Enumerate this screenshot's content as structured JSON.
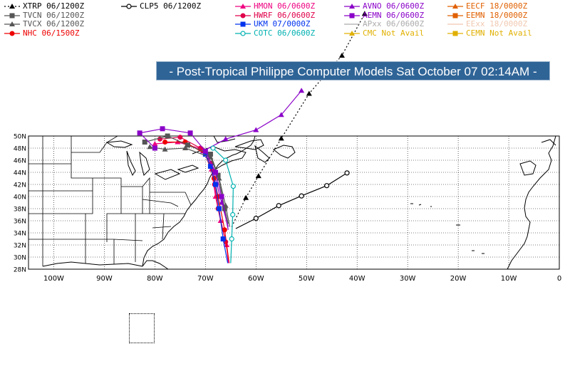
{
  "title": "- Post-Tropical Philippe Computer Models Sat October 07 02:14AM -",
  "legend": [
    {
      "id": "xtrp",
      "label": "XTRP  06/1200Z",
      "color": "#000000",
      "marker": "triangle",
      "dash": "2,3"
    },
    {
      "id": "tvcn",
      "label": "TVCN  06/1200Z",
      "color": "#555555",
      "marker": "square",
      "dash": ""
    },
    {
      "id": "tvcx",
      "label": "TVCX  06/1200Z",
      "color": "#555555",
      "marker": "triangle",
      "dash": ""
    },
    {
      "id": "nhc",
      "label": "NHC  06/1500Z",
      "color": "#ee0000",
      "marker": "circle",
      "dash": ""
    },
    {
      "id": "clp5",
      "label": "CLP5  06/1200Z",
      "color": "#000000",
      "marker": "open-circle",
      "dash": ""
    },
    {
      "id": "hmon",
      "label": "HMON  06/0600Z",
      "color": "#ee0080",
      "marker": "triangle",
      "dash": ""
    },
    {
      "id": "hwrf",
      "label": "HWRF  06/0600Z",
      "color": "#e0004a",
      "marker": "circle",
      "dash": ""
    },
    {
      "id": "ukm",
      "label": "UKM   07/0000Z",
      "color": "#0033ee",
      "marker": "square",
      "dash": ""
    },
    {
      "id": "cotc",
      "label": "COTC  06/0600Z",
      "color": "#00b0b0",
      "marker": "open-circle",
      "dash": ""
    },
    {
      "id": "avno",
      "label": "AVNO  06/0600Z",
      "color": "#8a00c8",
      "marker": "triangle",
      "dash": ""
    },
    {
      "id": "aemn",
      "label": "AEMN  06/0600Z",
      "color": "#8a00c8",
      "marker": "square",
      "dash": ""
    },
    {
      "id": "apxx",
      "label": "APxx  06/0600Z",
      "color": "#aaaaaa",
      "marker": "none",
      "dash": ""
    },
    {
      "id": "cmc",
      "label": "CMC   Not Avail",
      "color": "#e0b000",
      "marker": "triangle",
      "dash": ""
    },
    {
      "id": "eecf",
      "label": "EECF  18/0000Z",
      "color": "#e06000",
      "marker": "triangle",
      "dash": ""
    },
    {
      "id": "eemn",
      "label": "EEMN  18/0000Z",
      "color": "#e06000",
      "marker": "square",
      "dash": ""
    },
    {
      "id": "eexx",
      "label": "EExx  18/0000Z",
      "color": "#f0c8b0",
      "marker": "none",
      "dash": ""
    },
    {
      "id": "cemn",
      "label": "CEMN  Not Avail",
      "color": "#e0b000",
      "marker": "square",
      "dash": ""
    }
  ],
  "axes": {
    "lon_labels": [
      "100W",
      "90W",
      "80W",
      "70W",
      "60W",
      "50W",
      "40W",
      "30W",
      "20W",
      "10W",
      "0"
    ],
    "lat_labels": [
      "28N",
      "30N",
      "32N",
      "34N",
      "36N",
      "38N",
      "40N",
      "42N",
      "44N",
      "46N",
      "48N",
      "50N"
    ],
    "lon_range": [
      -105,
      0
    ],
    "lat_range": [
      28,
      50
    ],
    "grid": "dotted"
  },
  "tracks": [
    {
      "id": "xtrp",
      "color": "#000000",
      "dash": "2,3",
      "marker": "triangle",
      "points": [
        [
          -64.8,
          35.0
        ],
        [
          -62.0,
          39.8
        ],
        [
          -59.5,
          43.4
        ],
        [
          -55.0,
          49.6
        ],
        [
          -49.5,
          57.0
        ],
        [
          -43.0,
          63.3
        ],
        [
          -38.5,
          70.2
        ]
      ]
    },
    {
      "id": "clp5",
      "color": "#000000",
      "dash": "",
      "marker": "open-circle",
      "points": [
        [
          -64.0,
          34.7
        ],
        [
          -60.0,
          36.4
        ],
        [
          -55.5,
          38.5
        ],
        [
          -51.0,
          40.1
        ],
        [
          -46.0,
          41.8
        ],
        [
          -42.0,
          43.9
        ]
      ]
    },
    {
      "id": "avno",
      "color": "#8a00c8",
      "dash": "",
      "marker": "triangle",
      "points": [
        [
          -65.5,
          35.0
        ],
        [
          -66.8,
          39.0
        ],
        [
          -68.5,
          44.5
        ],
        [
          -70.5,
          47.5
        ],
        [
          -66.0,
          49.5
        ],
        [
          -60.0,
          51.0
        ],
        [
          -55.0,
          53.5
        ],
        [
          -51.0,
          57.5
        ]
      ]
    },
    {
      "id": "hmon",
      "color": "#ee0080",
      "dash": "",
      "marker": "triangle",
      "points": [
        [
          -65.5,
          29.0
        ],
        [
          -65.8,
          32.0
        ],
        [
          -67.0,
          36.0
        ],
        [
          -68.0,
          40.0
        ],
        [
          -68.8,
          44.5
        ],
        [
          -70.5,
          47.8
        ],
        [
          -75.5,
          49.0
        ],
        [
          -80.0,
          48.7
        ]
      ]
    },
    {
      "id": "hwrf",
      "color": "#e0004a",
      "dash": "",
      "marker": "circle",
      "points": [
        [
          -65.3,
          29.0
        ],
        [
          -66.0,
          32.5
        ],
        [
          -67.5,
          38.0
        ],
        [
          -68.2,
          42.0
        ],
        [
          -68.8,
          45.5
        ],
        [
          -71.0,
          48.0
        ],
        [
          -75.0,
          49.8
        ],
        [
          -79.0,
          49.5
        ]
      ]
    },
    {
      "id": "nhc",
      "color": "#ee0000",
      "dash": "",
      "marker": "circle",
      "points": [
        [
          -65.4,
          29.5
        ],
        [
          -66.2,
          34.5
        ],
        [
          -67.5,
          40.0
        ],
        [
          -68.3,
          43.0
        ],
        [
          -70.0,
          47.0
        ],
        [
          -74.0,
          49.0
        ],
        [
          -78.0,
          49.0
        ]
      ]
    },
    {
      "id": "ukm",
      "color": "#0033ee",
      "dash": "",
      "marker": "square",
      "points": [
        [
          -65.6,
          29.0
        ],
        [
          -66.5,
          33.0
        ],
        [
          -67.3,
          38.0
        ],
        [
          -68.0,
          42.0
        ],
        [
          -69.0,
          45.0
        ],
        [
          -70.0,
          47.0
        ]
      ]
    },
    {
      "id": "cotc",
      "color": "#00b0b0",
      "dash": "",
      "marker": "open-circle",
      "points": [
        [
          -65.0,
          29.0
        ],
        [
          -64.8,
          33.0
        ],
        [
          -64.6,
          37.0
        ],
        [
          -64.5,
          41.7
        ],
        [
          -66.0,
          46.0
        ],
        [
          -68.5,
          48.0
        ]
      ]
    },
    {
      "id": "tvcn",
      "color": "#555555",
      "dash": "",
      "marker": "square",
      "points": [
        [
          -65.5,
          35.5
        ],
        [
          -66.2,
          38.0
        ],
        [
          -67.5,
          43.5
        ],
        [
          -69.0,
          47.0
        ],
        [
          -73.5,
          48.5
        ],
        [
          -77.5,
          50.0
        ],
        [
          -82.0,
          49.0
        ]
      ]
    },
    {
      "id": "tvcx",
      "color": "#555555",
      "dash": "",
      "marker": "triangle",
      "points": [
        [
          -65.2,
          35.0
        ],
        [
          -66.0,
          38.5
        ],
        [
          -67.3,
          43.0
        ],
        [
          -69.0,
          46.5
        ],
        [
          -74.0,
          48.0
        ],
        [
          -78.0,
          47.8
        ],
        [
          -81.0,
          48.2
        ]
      ]
    },
    {
      "id": "aemn",
      "color": "#8a00c8",
      "dash": "",
      "marker": "square",
      "points": [
        [
          -65.5,
          34.5
        ],
        [
          -66.8,
          40.0
        ],
        [
          -68.0,
          44.0
        ],
        [
          -70.0,
          47.5
        ],
        [
          -73.0,
          50.5
        ],
        [
          -78.5,
          51.2
        ],
        [
          -83.0,
          50.5
        ],
        [
          -80.0,
          48.0
        ]
      ]
    }
  ]
}
